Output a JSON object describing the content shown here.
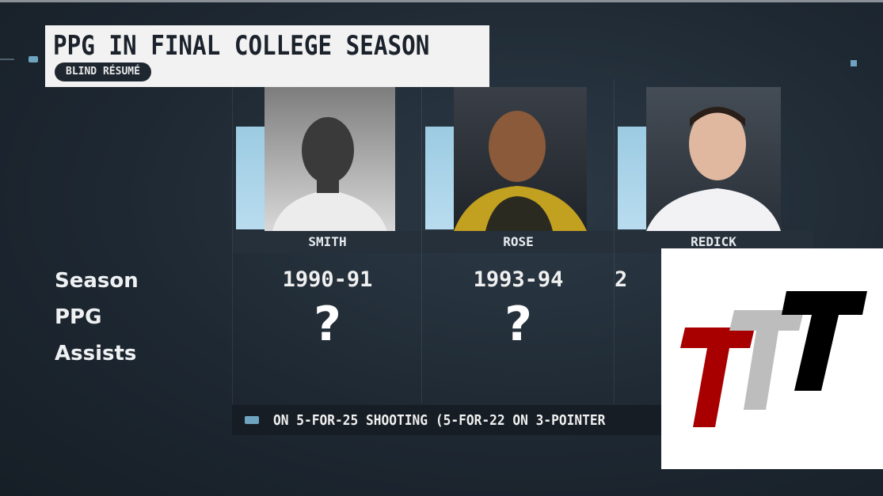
{
  "header": {
    "title": "PPG IN FINAL COLLEGE SEASON",
    "subtitle": "BLIND RÉSUMÉ"
  },
  "row_labels": [
    "Season",
    "PPG",
    "Assists"
  ],
  "players": [
    {
      "name": "SMITH",
      "season": "1990-91",
      "ppg": "?"
    },
    {
      "name": "ROSE",
      "season": "1993-94",
      "ppg": "?"
    },
    {
      "name": "REDICK",
      "season": "2",
      "ppg": ""
    }
  ],
  "ticker": {
    "text": "ON 5-FOR-25 SHOOTING (5-FOR-22 ON 3-POINTER"
  },
  "logo": {
    "text": "TTT",
    "colors": [
      "#a80000",
      "#bdbdbd",
      "#000000"
    ]
  },
  "colors": {
    "accent": "#9ccbe2",
    "background": "#1e2832"
  }
}
